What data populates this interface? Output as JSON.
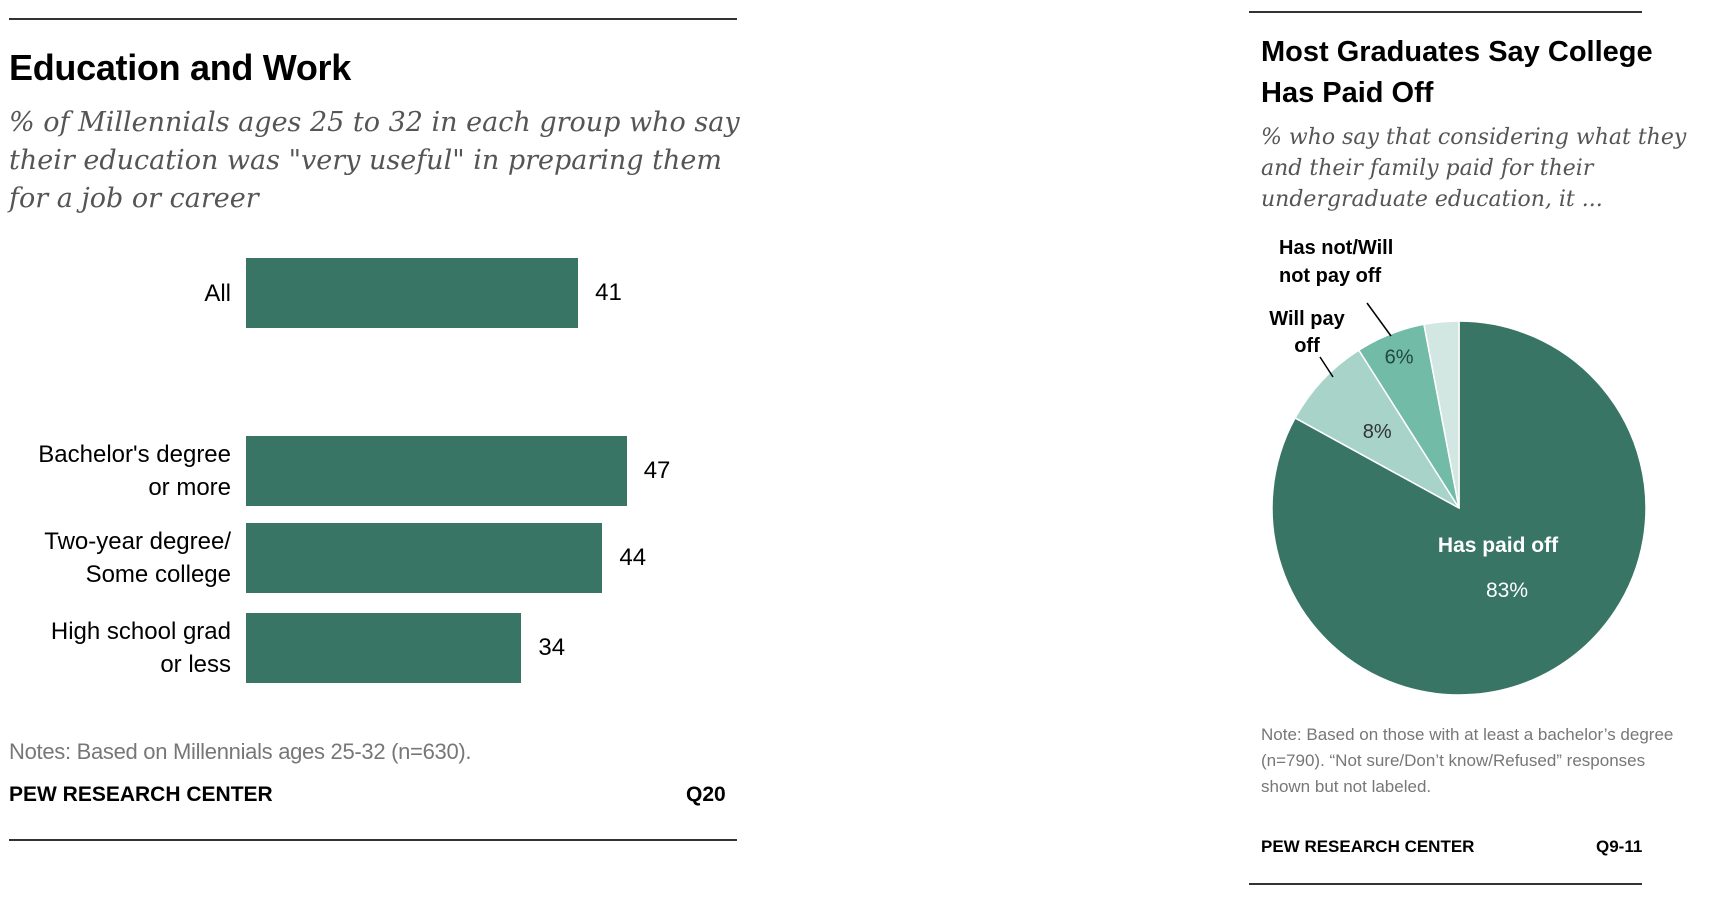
{
  "colors": {
    "dark_green": "#387565",
    "mid_green": "#72bba6",
    "light_green": "#a7d3c8",
    "pale_green": "#d3e7e2",
    "rule": "#333333",
    "note": "#777777"
  },
  "left": {
    "title": "Education and Work",
    "subtitle": "% of Millennials ages 25 to 32 in each group who say their education was \"very useful\" in preparing them for a job or career",
    "note": "Notes: Based on Millennials ages 25-32 (n=630).",
    "source": "PEW RESEARCH CENTER",
    "code": "Q20"
  },
  "right": {
    "title": "Most Graduates Say College Has Paid Off",
    "subtitle": "% who say that considering what they and their family paid for their undergraduate education, it ...",
    "note": "Note: Based on those with at least a bachelor’s degree (n=790). “Not sure/Don’t know/Refused” responses shown but not labeled.",
    "source": "PEW RESEARCH CENTER",
    "code": "Q9-11"
  },
  "chart_data": [
    {
      "type": "bar",
      "orientation": "horizontal",
      "title": "Education and Work",
      "subtitle": "% of Millennials ages 25 to 32 in each group who say their education was \"very useful\" in preparing them for a job or career",
      "categories": [
        [
          "All"
        ],
        [
          "Bachelor's degree",
          "or more"
        ],
        [
          "Two-year degree/",
          "Some college"
        ],
        [
          "High school grad",
          "or less"
        ]
      ],
      "values": [
        41,
        47,
        44,
        34
      ],
      "xlim": [
        0,
        100
      ],
      "grid": false,
      "legend": "none"
    },
    {
      "type": "pie",
      "title": "Most Graduates Say College Has Paid Off",
      "subtitle": "% who say that considering what they and their family paid for their undergraduate education, it ...",
      "slices": [
        {
          "label": "Has paid off",
          "value": 83,
          "value_label": "83%",
          "color": "#387565"
        },
        {
          "label": "Will pay off",
          "value": 8,
          "value_label": "8%",
          "color": "#a7d3c8"
        },
        {
          "label": "Has not/Will not pay off",
          "value": 6,
          "value_label": "6%",
          "color": "#72bba6"
        },
        {
          "label": "",
          "value": 3,
          "value_label": "",
          "color": "#d3e7e2"
        }
      ],
      "labels": {
        "has_paid_off": "Has paid off",
        "will_pay_off": [
          "Will pay",
          "off"
        ],
        "has_not": [
          "Has not/Will",
          "not pay off"
        ]
      }
    }
  ]
}
